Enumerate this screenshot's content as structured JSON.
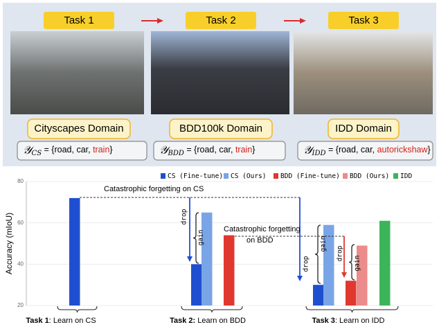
{
  "panel": {
    "tasks": [
      "Task 1",
      "Task 2",
      "Task 3"
    ],
    "domains": [
      "Cityscapes Domain",
      "BDD100k Domain",
      "IDD Domain"
    ],
    "label_sets": [
      {
        "symbol": "𝒴",
        "subscript": "CS",
        "text": " = {road, car, ",
        "novel": "train",
        "close": "}"
      },
      {
        "symbol": "𝒴",
        "subscript": "BDD",
        "text": " = {road, car, ",
        "novel": "train",
        "close": "}"
      },
      {
        "symbol": "𝒴",
        "subscript": "IDD",
        "text": " = {road, car, ",
        "novel": "autorickshaw",
        "close": "}"
      }
    ]
  },
  "chart_data": {
    "type": "bar",
    "y_label": "Accuracy (mIoU)",
    "categories": [
      "Task 1",
      "Task 2:",
      "Task 3"
    ],
    "category_subtitles": [
      ": Learn on CS",
      " Learn on BDD",
      ": Learn on IDD"
    ],
    "series": [
      {
        "name": "CS (Fine-tune)",
        "color": "#1f4fd1",
        "values": [
          72,
          40,
          30
        ]
      },
      {
        "name": "CS (Ours)",
        "color": "#79a5e6",
        "values": [
          null,
          65,
          59
        ]
      },
      {
        "name": "BDD (Fine-tune)",
        "color": "#e0382f",
        "values": [
          null,
          54,
          32
        ]
      },
      {
        "name": "BDD (Ours)",
        "color": "#ec8b8b",
        "values": [
          null,
          null,
          49
        ]
      },
      {
        "name": "IDD",
        "color": "#3cb45a",
        "values": [
          null,
          null,
          61
        ]
      }
    ],
    "ylim": [
      20,
      80
    ],
    "yticks": [
      20,
      40,
      60,
      80
    ],
    "grid": true,
    "annotations": [
      "Catastrophic forgetting on CS",
      "Catastrophic forgetting",
      "on BDD",
      "drop",
      "gain",
      "drop",
      "gain",
      "drop",
      "gain"
    ]
  }
}
